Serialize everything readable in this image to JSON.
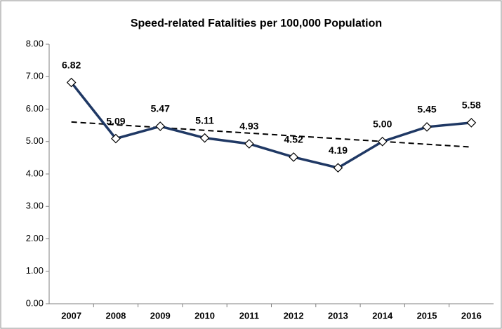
{
  "chart_data": {
    "type": "line",
    "title": "Speed-related Fatalities per 100,000 Population",
    "categories": [
      "2007",
      "2008",
      "2009",
      "2010",
      "2011",
      "2012",
      "2013",
      "2014",
      "2015",
      "2016"
    ],
    "series": [
      {
        "color": "#1f3864",
        "values": [
          6.82,
          5.09,
          5.47,
          5.11,
          4.93,
          4.52,
          4.19,
          5.0,
          5.45,
          5.58
        ],
        "value_labels": [
          "6.82",
          "5.09",
          "5.47",
          "5.11",
          "4.93",
          "4.52",
          "4.19",
          "5.00",
          "5.45",
          "5.58"
        ]
      }
    ],
    "trendline": true,
    "ylim": [
      0,
      8
    ],
    "yticks": [
      {
        "value": 0,
        "label": "0.00"
      },
      {
        "value": 1,
        "label": "1.00"
      },
      {
        "value": 2,
        "label": "2.00"
      },
      {
        "value": 3,
        "label": "3.00"
      },
      {
        "value": 4,
        "label": "4.00"
      },
      {
        "value": 5,
        "label": "5.00"
      },
      {
        "value": 6,
        "label": "6.00"
      },
      {
        "value": 7,
        "label": "7.00"
      },
      {
        "value": 8,
        "label": "8.00"
      }
    ],
    "grid": false
  }
}
